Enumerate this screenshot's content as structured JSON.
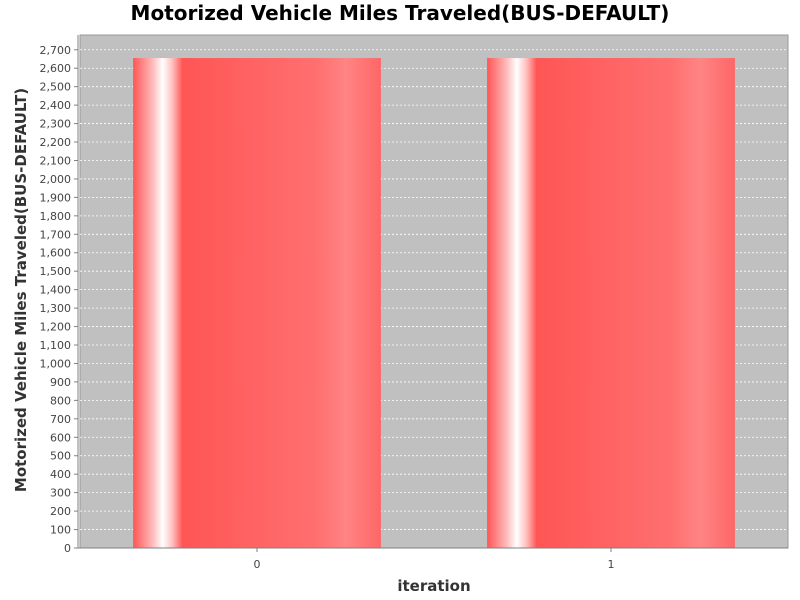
{
  "chart_data": {
    "type": "bar",
    "title": "Motorized Vehicle Miles Traveled(BUS-DEFAULT)",
    "xlabel": "iteration",
    "ylabel": "Motorized Vehicle Miles Traveled(BUS-DEFAULT)",
    "categories": [
      "0",
      "1"
    ],
    "values": [
      2655,
      2655
    ],
    "ylim": [
      0,
      2780
    ],
    "yticks": [
      0,
      100,
      200,
      300,
      400,
      500,
      600,
      700,
      800,
      900,
      1000,
      1100,
      1200,
      1300,
      1400,
      1500,
      1600,
      1700,
      1800,
      1900,
      2000,
      2100,
      2200,
      2300,
      2400,
      2500,
      2600,
      2700
    ],
    "grid": true,
    "legend": "none",
    "colors": {
      "plot_background": "#c0c0c0",
      "bar": "#ff5555",
      "bar_highlight": "#ffffff",
      "gridline": "#ffffff"
    }
  }
}
